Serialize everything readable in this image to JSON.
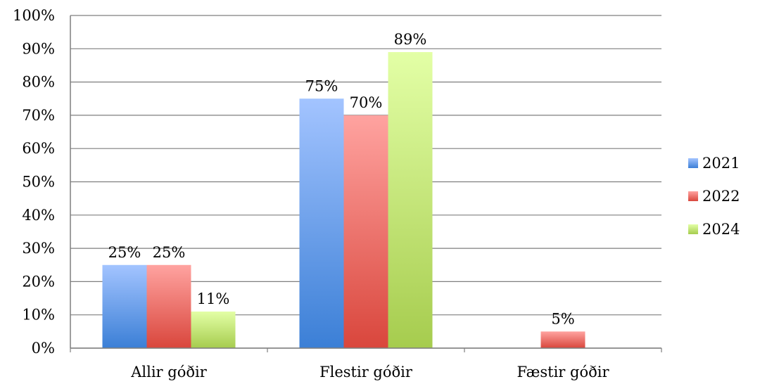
{
  "chart_data": {
    "type": "bar",
    "categories": [
      "Allir góðir",
      "Flestir góðir",
      "Fæstir góðir"
    ],
    "series": [
      {
        "name": "2021",
        "values": [
          25,
          75,
          0
        ],
        "labels": [
          "25%",
          "75%",
          ""
        ],
        "color_top": "#a3c4ff",
        "color_bottom": "#3b7fd6"
      },
      {
        "name": "2022",
        "values": [
          25,
          70,
          5
        ],
        "labels": [
          "25%",
          "70%",
          "5%"
        ],
        "color_top": "#ffa3a0",
        "color_bottom": "#d9463c"
      },
      {
        "name": "2024",
        "values": [
          11,
          89,
          0
        ],
        "labels": [
          "11%",
          "89%",
          ""
        ],
        "color_top": "#e3ffa6",
        "color_bottom": "#a6cc4e"
      }
    ],
    "yticks": [
      "0%",
      "10%",
      "20%",
      "30%",
      "40%",
      "50%",
      "60%",
      "70%",
      "80%",
      "90%",
      "100%"
    ],
    "ylim": [
      0,
      100
    ],
    "grid": true,
    "legend_position": "right",
    "title": "",
    "xlabel": "",
    "ylabel": ""
  }
}
